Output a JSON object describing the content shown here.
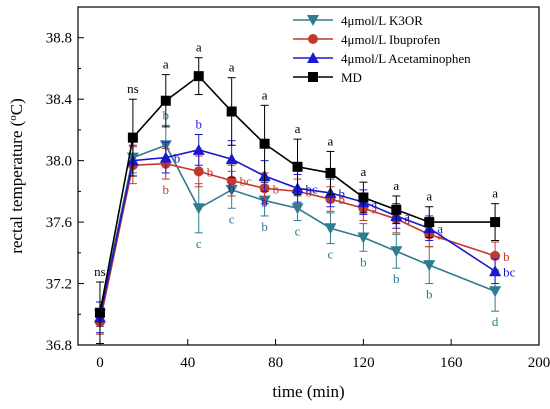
{
  "chart_data": {
    "type": "line",
    "xlabel": "time (min)",
    "ylabel": "rectal temperature (",
    "ylabel_unit_sup": "o",
    "ylabel_unit_after": "C)",
    "xlim": [
      -10,
      200
    ],
    "ylim": [
      36.8,
      39.0
    ],
    "xticks": [
      0,
      40,
      80,
      120,
      160,
      200
    ],
    "xtick_labels": [
      "0",
      "40",
      "80",
      "120",
      "160",
      "200"
    ],
    "yticks": [
      36.8,
      37.2,
      37.6,
      38.0,
      38.4,
      38.8
    ],
    "ytick_labels": [
      "36.8",
      "37.2",
      "37.6",
      "38.0",
      "38.4",
      "38.8"
    ],
    "grid": false,
    "legend_position": "top-right",
    "x": [
      0,
      15,
      30,
      45,
      60,
      75,
      90,
      105,
      120,
      135,
      150,
      180
    ],
    "series": [
      {
        "name": "4μmol/L K3OR",
        "color": "#2e7d8c",
        "marker": "triangle-down",
        "values": [
          37.0,
          38.02,
          38.1,
          37.69,
          37.81,
          37.74,
          37.69,
          37.56,
          37.5,
          37.41,
          37.32,
          37.15
        ],
        "errors": [
          0.08,
          0.1,
          0.13,
          0.16,
          0.12,
          0.1,
          0.08,
          0.1,
          0.09,
          0.11,
          0.12,
          0.13
        ],
        "labels": [
          "",
          "",
          "b",
          "c",
          "c",
          "b",
          "c",
          "c",
          "b",
          "b",
          "b",
          "d"
        ],
        "label_pos": [
          "",
          "",
          "above",
          "below",
          "below",
          "below",
          "below",
          "below",
          "below",
          "below",
          "below",
          "below"
        ]
      },
      {
        "name": "4μmol/L Ibuprofen",
        "color": "#c0392b",
        "marker": "circle",
        "values": [
          36.95,
          37.97,
          37.98,
          37.93,
          37.87,
          37.82,
          37.8,
          37.75,
          37.69,
          37.62,
          37.52,
          37.38
        ],
        "errors": [
          0.08,
          0.12,
          0.1,
          0.1,
          0.1,
          0.1,
          0.08,
          0.08,
          0.08,
          0.09,
          0.08,
          0.09
        ],
        "labels": [
          "",
          "",
          "b",
          "b",
          "bc",
          "b",
          "b",
          "b",
          "a",
          "a",
          "a",
          "b"
        ],
        "label_pos": [
          "",
          "",
          "below",
          "right",
          "right",
          "right",
          "right",
          "right",
          "right",
          "right",
          "right",
          "right"
        ]
      },
      {
        "name": "4μmol/L Acetaminophen",
        "color": "#1a1acc",
        "marker": "triangle-up",
        "values": [
          36.98,
          38.0,
          38.02,
          38.07,
          38.01,
          37.9,
          37.82,
          37.79,
          37.73,
          37.64,
          37.56,
          37.28
        ],
        "errors": [
          0.1,
          0.1,
          0.1,
          0.1,
          0.12,
          0.1,
          0.09,
          0.09,
          0.08,
          0.08,
          0.08,
          0.08
        ],
        "labels": [
          "",
          "",
          "b",
          "b",
          "b",
          "b",
          "bc",
          "b",
          "a",
          "a",
          "a",
          "bc"
        ],
        "label_pos": [
          "",
          "",
          "right",
          "above",
          "below",
          "below",
          "right",
          "right",
          "right",
          "right",
          "right",
          "right"
        ]
      },
      {
        "name": "MD",
        "color": "#000000",
        "marker": "square",
        "values": [
          37.01,
          38.15,
          38.39,
          38.55,
          38.32,
          38.11,
          37.96,
          37.92,
          37.76,
          37.68,
          37.6,
          37.6
        ],
        "errors": [
          0.2,
          0.25,
          0.17,
          0.12,
          0.22,
          0.25,
          0.18,
          0.14,
          0.1,
          0.09,
          0.1,
          0.12
        ],
        "labels": [
          "ns",
          "ns",
          "a",
          "a",
          "a",
          "a",
          "a",
          "a",
          "a",
          "a",
          "a",
          "a"
        ],
        "label_pos": [
          "above",
          "above",
          "above",
          "above",
          "above",
          "above",
          "above",
          "above",
          "above",
          "above",
          "above",
          "above"
        ]
      }
    ]
  }
}
